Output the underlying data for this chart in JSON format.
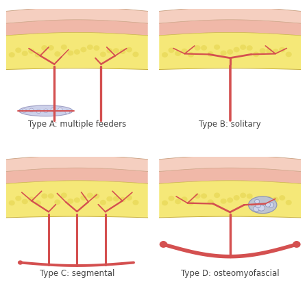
{
  "background": "#ffffff",
  "skin_top_color": "#f5cfc0",
  "skin_mid_color": "#f0b8a8",
  "fat_color": "#f5e878",
  "fat_bubble_color": "#e8d855",
  "vessel_color": "#d45050",
  "vessel_lw": 2.2,
  "nerve_fill": "#c8cce8",
  "nerve_edge": "#9898c0",
  "bone_fill": "#b8c0dc",
  "bone_edge": "#8890b8",
  "outline_color": "#c8a080",
  "fat_outline": "#c8b040",
  "labels": [
    "Type A: multiple feeders",
    "Type B: solitary",
    "Type C: segmental",
    "Type D: osteomyofascial"
  ],
  "label_fontsize": 8.5,
  "label_color": "#444444",
  "fig_width": 4.48,
  "fig_height": 4.28,
  "dpi": 100
}
